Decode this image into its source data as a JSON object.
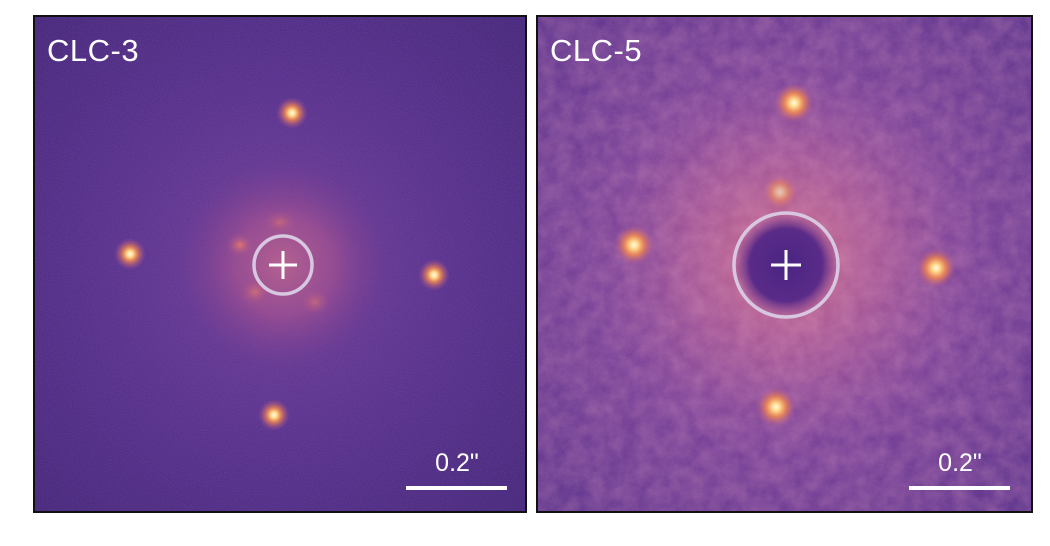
{
  "panels": [
    {
      "label": "CLC-3",
      "scale_label": "0.2\"",
      "colors": {
        "background": "#4a2580",
        "halo": "#a34f95",
        "spot_core": "#fff4cf",
        "spot_glow": "#f29652",
        "ring": "#d8c7e0",
        "cross": "#ffffff"
      }
    },
    {
      "label": "CLC-5",
      "scale_label": "0.2\"",
      "colors": {
        "background": "#5b2d88",
        "halo": "#c0588a",
        "spot_core": "#fff4cf",
        "spot_glow": "#f29652",
        "ring": "#d8c7e0",
        "cross": "#ffffff"
      }
    }
  ]
}
